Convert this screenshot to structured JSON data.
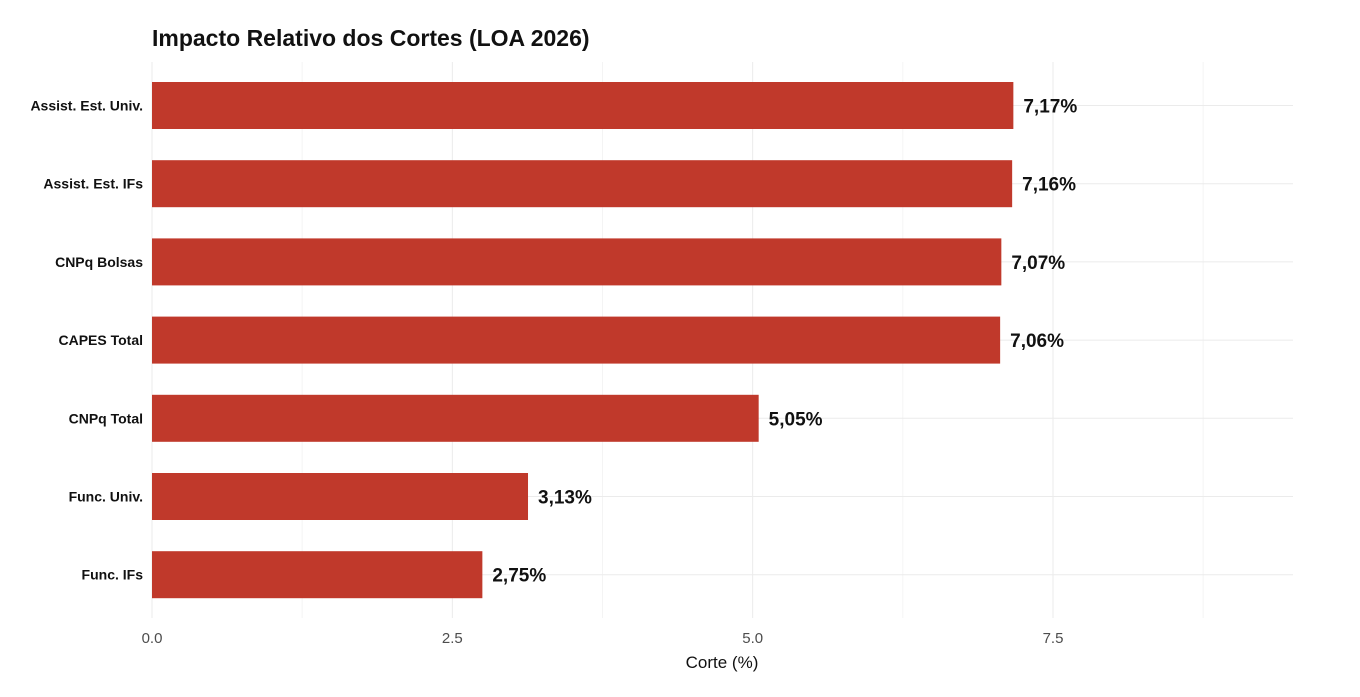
{
  "chart_data": {
    "type": "bar",
    "orientation": "horizontal",
    "title": "Impacto Relativo dos Cortes (LOA 2026)",
    "xlabel": "Corte (%)",
    "ylabel": "",
    "xlim": [
      0,
      9.5
    ],
    "x_ticks": [
      0,
      2.5,
      5,
      7.5
    ],
    "x_tick_labels": [
      "0.0",
      "2.5",
      "5.0",
      "7.5"
    ],
    "categories": [
      "Assist. Est. Univ.",
      "Assist. Est. IFs",
      "CNPq Bolsas",
      "CAPES Total",
      "CNPq Total",
      "Func. Univ.",
      "Func. IFs"
    ],
    "values": [
      7.17,
      7.16,
      7.07,
      7.06,
      5.05,
      3.13,
      2.75
    ],
    "value_labels": [
      "7,17%",
      "7,16%",
      "7,07%",
      "7,06%",
      "5,05%",
      "3,13%",
      "2,75%"
    ],
    "bar_color": "#c0392b",
    "grid": true,
    "legend": "none"
  }
}
